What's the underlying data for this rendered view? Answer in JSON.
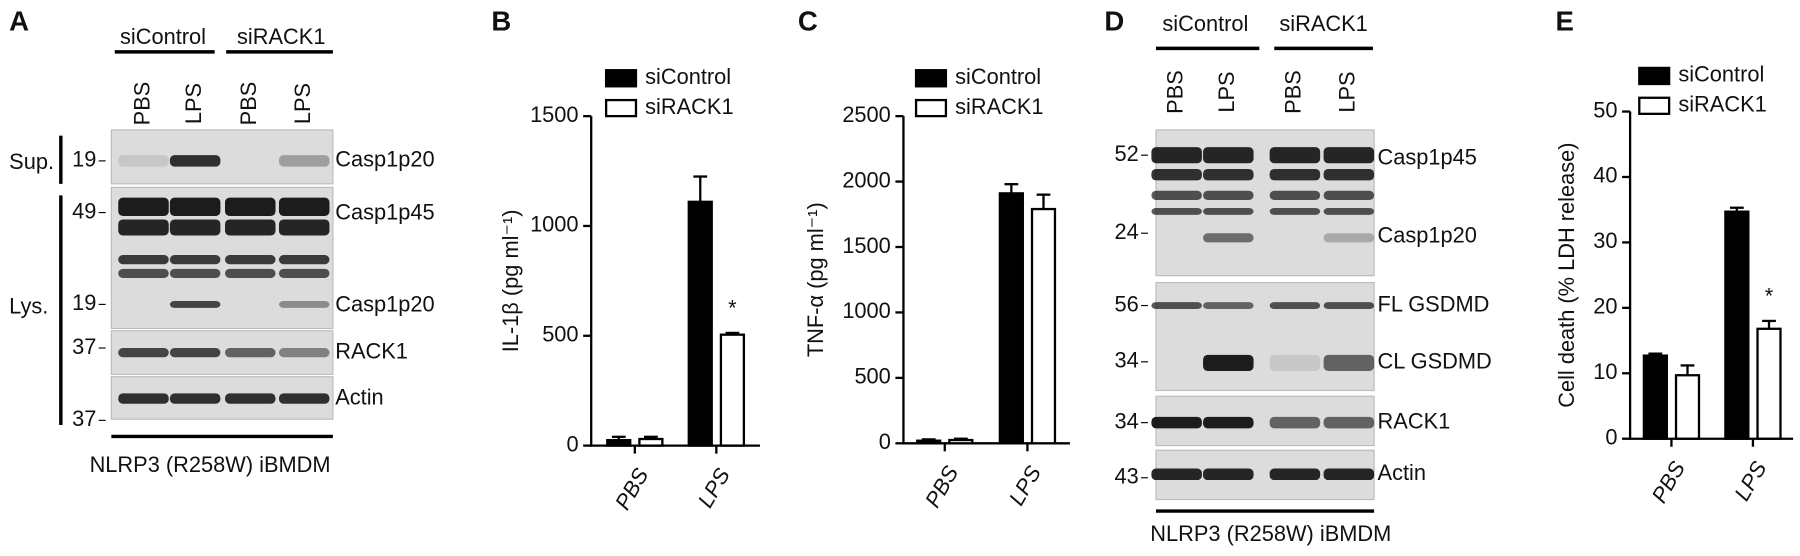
{
  "chart_data": [
    {
      "type": "bar",
      "panel": "B",
      "ylabel": "IL-1β (pg ml⁻¹)",
      "categories": [
        "PBS",
        "LPS"
      ],
      "series": [
        {
          "name": "siControl",
          "color": "#000000",
          "values": [
            25,
            1110
          ],
          "errors": [
            15,
            115
          ]
        },
        {
          "name": "siRACK1",
          "color": "#ffffff",
          "values": [
            30,
            505
          ],
          "errors": [
            10,
            8
          ]
        }
      ],
      "ylim": [
        0,
        1500
      ],
      "yticks": [
        0,
        500,
        1000,
        1500
      ],
      "annotations": [
        "*"
      ]
    },
    {
      "type": "bar",
      "panel": "C",
      "ylabel": "TNF-α (pg ml⁻¹)",
      "categories": [
        "PBS",
        "LPS"
      ],
      "series": [
        {
          "name": "siControl",
          "color": "#000000",
          "values": [
            20,
            1910
          ],
          "errors": [
            10,
            70
          ]
        },
        {
          "name": "siRACK1",
          "color": "#ffffff",
          "values": [
            25,
            1790
          ],
          "errors": [
            10,
            110
          ]
        }
      ],
      "ylim": [
        0,
        2500
      ],
      "yticks": [
        0,
        500,
        1000,
        1500,
        2000,
        2500
      ]
    },
    {
      "type": "bar",
      "panel": "E",
      "ylabel": "Cell death (% LDH release)",
      "categories": [
        "PBS",
        "LPS"
      ],
      "series": [
        {
          "name": "siControl",
          "color": "#000000",
          "values": [
            12.7,
            34.7
          ],
          "errors": [
            0.3,
            0.6
          ]
        },
        {
          "name": "siRACK1",
          "color": "#ffffff",
          "values": [
            9.7,
            16.8
          ],
          "errors": [
            1.5,
            1.2
          ]
        }
      ],
      "ylim": [
        0,
        50
      ],
      "yticks": [
        0,
        10,
        20,
        30,
        40,
        50
      ],
      "annotations": [
        "*"
      ]
    }
  ],
  "blots": [
    {
      "panel": "A",
      "groups": [
        "siControl",
        "siRACK1"
      ],
      "lanes": [
        "PBS",
        "LPS",
        "PBS",
        "LPS"
      ],
      "sections": [
        "Sup.",
        "Lys."
      ],
      "markers": [
        "19",
        "49",
        "19",
        "37",
        "37"
      ],
      "bands": [
        "Casp1p20",
        "Casp1p45",
        "Casp1p20",
        "RACK1",
        "Actin"
      ],
      "footer": "NLRP3 (R258W) iBMDM"
    },
    {
      "panel": "D",
      "groups": [
        "siControl",
        "siRACK1"
      ],
      "lanes": [
        "PBS",
        "LPS",
        "PBS",
        "LPS"
      ],
      "markers": [
        "52",
        "24",
        "56",
        "34",
        "34",
        "43"
      ],
      "bands": [
        "Casp1p45",
        "Casp1p20",
        "FL GSDMD",
        "CL GSDMD",
        "RACK1",
        "Actin"
      ],
      "footer": "NLRP3 (R258W) iBMDM"
    }
  ]
}
